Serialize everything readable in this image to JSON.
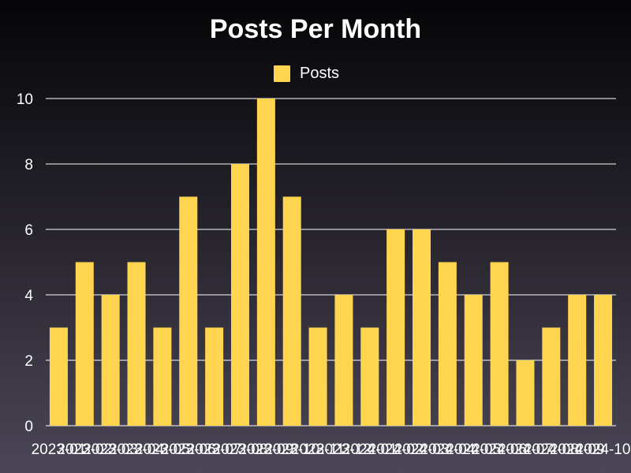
{
  "chart_data": {
    "type": "bar",
    "title": "Posts Per Month",
    "xlabel": "",
    "ylabel": "",
    "legend": {
      "position": "top",
      "entries": [
        "Posts"
      ]
    },
    "grid": true,
    "ylim": [
      0,
      10
    ],
    "yticks": [
      0,
      2,
      4,
      6,
      8,
      10
    ],
    "categories": [
      "2023-01",
      "2023-02",
      "2023-03",
      "2023-04",
      "2023-05",
      "2023-06",
      "2023-07",
      "2023-08",
      "2023-09",
      "2023-10",
      "2023-11",
      "2023-12",
      "2024-01",
      "2024-02",
      "2024-03",
      "2024-04",
      "2024-05",
      "2024-06",
      "2024-07",
      "2024-08",
      "2024-09",
      "2024-10"
    ],
    "series": [
      {
        "name": "Posts",
        "color": "#ffd54f",
        "values": [
          3,
          5,
          4,
          5,
          3,
          7,
          3,
          8,
          10,
          7,
          3,
          4,
          3,
          6,
          6,
          5,
          4,
          5,
          2,
          3,
          4,
          4
        ]
      }
    ]
  },
  "colors": {
    "bar": "#ffd54f",
    "text": "#ffffff",
    "gridline": "#ffffff",
    "background_top": "#050507",
    "background_bottom": "#4a4656"
  }
}
